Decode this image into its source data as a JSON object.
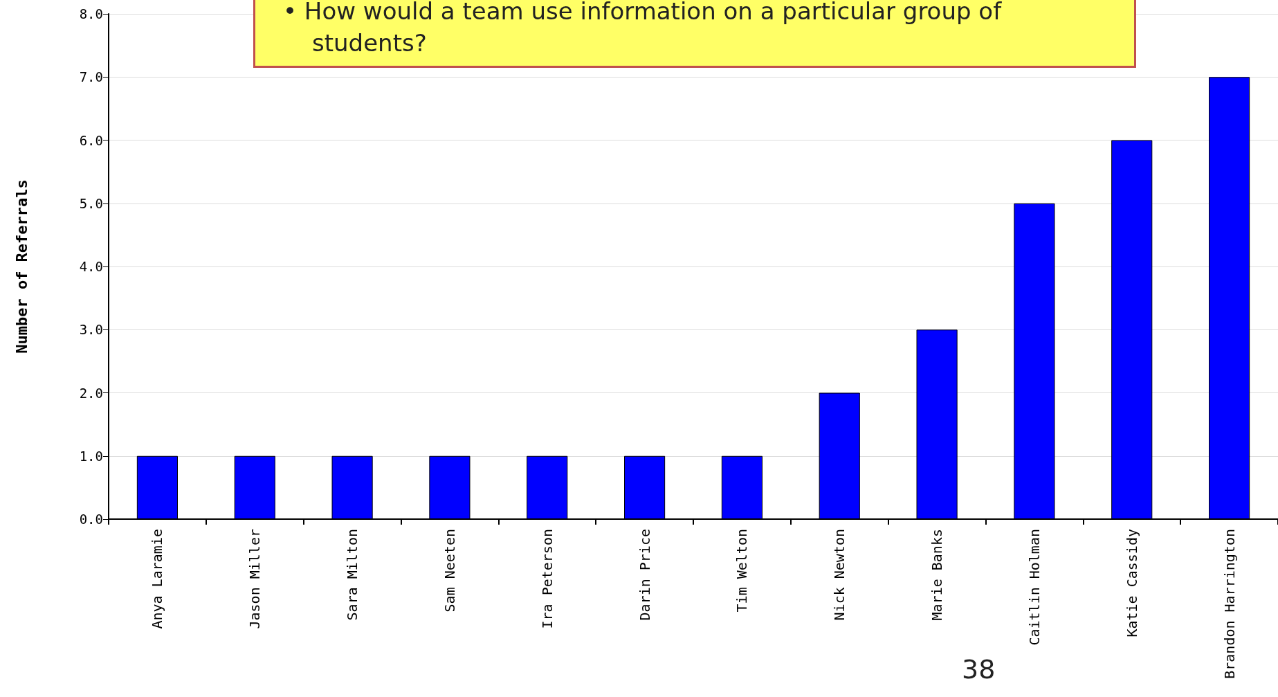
{
  "chart_data": {
    "type": "bar",
    "ylabel": "Number of Referrals",
    "categories": [
      "Anya Laramie",
      "Jason Miller",
      "Sara Milton",
      "Sam Neeten",
      "Ira Peterson",
      "Darin Price",
      "Tim Welton",
      "Nick Newton",
      "Marie Banks",
      "Caitlin Holman",
      "Katie Cassidy",
      "Brandon Harrington"
    ],
    "values": [
      1,
      1,
      1,
      1,
      1,
      1,
      1,
      2,
      3,
      5,
      6,
      7
    ],
    "color": "#0000ff",
    "ylim": [
      0,
      8
    ],
    "yticks": [
      {
        "value": 0,
        "label": "0.0"
      },
      {
        "value": 1,
        "label": "1.0"
      },
      {
        "value": 2,
        "label": "2.0"
      },
      {
        "value": 3,
        "label": "3.0"
      },
      {
        "value": 4,
        "label": "4.0"
      },
      {
        "value": 5,
        "label": "5.0"
      },
      {
        "value": 6,
        "label": "6.0"
      },
      {
        "value": 7,
        "label": "7.0"
      },
      {
        "value": 8,
        "label": "8.0"
      }
    ],
    "grid": "y",
    "annotations": [
      "• How would a team use information on a particular group of students?",
      "38"
    ]
  }
}
